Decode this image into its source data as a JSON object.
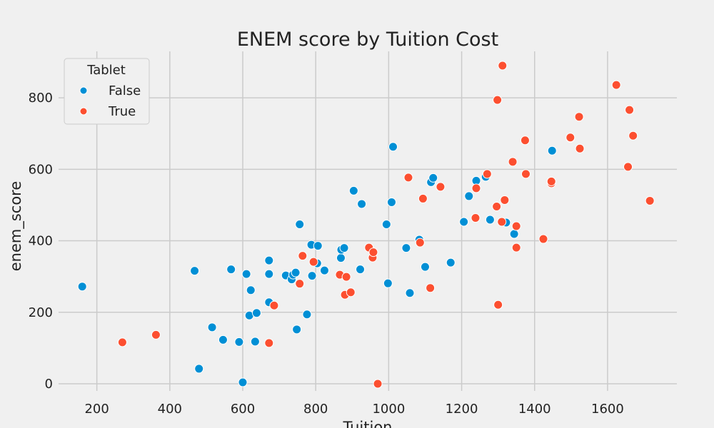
{
  "chart_data": {
    "type": "scatter",
    "title": "ENEM score by Tuition Cost",
    "xlabel": "Tuition",
    "ylabel": "enem_score",
    "xlim": [
      95,
      1790
    ],
    "ylim": [
      -20,
      930
    ],
    "xticks": [
      200,
      400,
      600,
      800,
      1000,
      1200,
      1400,
      1600
    ],
    "yticks": [
      0,
      200,
      400,
      600,
      800
    ],
    "grid": true,
    "legend": {
      "title": "Tablet",
      "placement": "top-left"
    },
    "series": [
      {
        "name": "False",
        "color": "#008fd5",
        "points": [
          [
            160,
            272
          ],
          [
            468,
            316
          ],
          [
            480,
            42
          ],
          [
            516,
            158
          ],
          [
            546,
            123
          ],
          [
            568,
            320
          ],
          [
            590,
            117
          ],
          [
            600,
            4
          ],
          [
            610,
            307
          ],
          [
            618,
            191
          ],
          [
            622,
            262
          ],
          [
            634,
            118
          ],
          [
            638,
            198
          ],
          [
            672,
            345
          ],
          [
            672,
            307
          ],
          [
            672,
            228
          ],
          [
            718,
            303
          ],
          [
            734,
            292
          ],
          [
            738,
            305
          ],
          [
            745,
            311
          ],
          [
            748,
            152
          ],
          [
            756,
            446
          ],
          [
            776,
            194
          ],
          [
            788,
            389
          ],
          [
            790,
            302
          ],
          [
            804,
            337
          ],
          [
            806,
            386
          ],
          [
            824,
            317
          ],
          [
            869,
            352
          ],
          [
            870,
            375
          ],
          [
            878,
            380
          ],
          [
            904,
            540
          ],
          [
            922,
            320
          ],
          [
            926,
            503
          ],
          [
            994,
            446
          ],
          [
            998,
            281
          ],
          [
            1008,
            508
          ],
          [
            1012,
            663
          ],
          [
            1048,
            380
          ],
          [
            1058,
            254
          ],
          [
            1084,
            403
          ],
          [
            1100,
            327
          ],
          [
            1116,
            564
          ],
          [
            1122,
            576
          ],
          [
            1170,
            339
          ],
          [
            1206,
            453
          ],
          [
            1220,
            525
          ],
          [
            1240,
            568
          ],
          [
            1266,
            579
          ],
          [
            1278,
            459
          ],
          [
            1322,
            451
          ],
          [
            1344,
            419
          ],
          [
            1448,
            652
          ],
          [
            1498,
            688
          ]
        ]
      },
      {
        "name": "True",
        "color": "#fc4f30",
        "points": [
          [
            270,
            116
          ],
          [
            362,
            137
          ],
          [
            672,
            114
          ],
          [
            686,
            219
          ],
          [
            756,
            280
          ],
          [
            764,
            358
          ],
          [
            794,
            341
          ],
          [
            866,
            305
          ],
          [
            880,
            249
          ],
          [
            884,
            299
          ],
          [
            896,
            256
          ],
          [
            946,
            381
          ],
          [
            956,
            353
          ],
          [
            958,
            368
          ],
          [
            970,
            0
          ],
          [
            1054,
            577
          ],
          [
            1086,
            395
          ],
          [
            1094,
            518
          ],
          [
            1114,
            268
          ],
          [
            1142,
            551
          ],
          [
            1238,
            464
          ],
          [
            1240,
            547
          ],
          [
            1270,
            587
          ],
          [
            1296,
            496
          ],
          [
            1298,
            794
          ],
          [
            1300,
            221
          ],
          [
            1310,
            453
          ],
          [
            1312,
            890
          ],
          [
            1318,
            514
          ],
          [
            1340,
            621
          ],
          [
            1350,
            441
          ],
          [
            1350,
            381
          ],
          [
            1374,
            681
          ],
          [
            1376,
            587
          ],
          [
            1424,
            405
          ],
          [
            1446,
            561
          ],
          [
            1446,
            566
          ],
          [
            1498,
            689
          ],
          [
            1522,
            747
          ],
          [
            1524,
            658
          ],
          [
            1624,
            836
          ],
          [
            1656,
            607
          ],
          [
            1660,
            766
          ],
          [
            1670,
            694
          ],
          [
            1716,
            512
          ]
        ]
      }
    ]
  }
}
